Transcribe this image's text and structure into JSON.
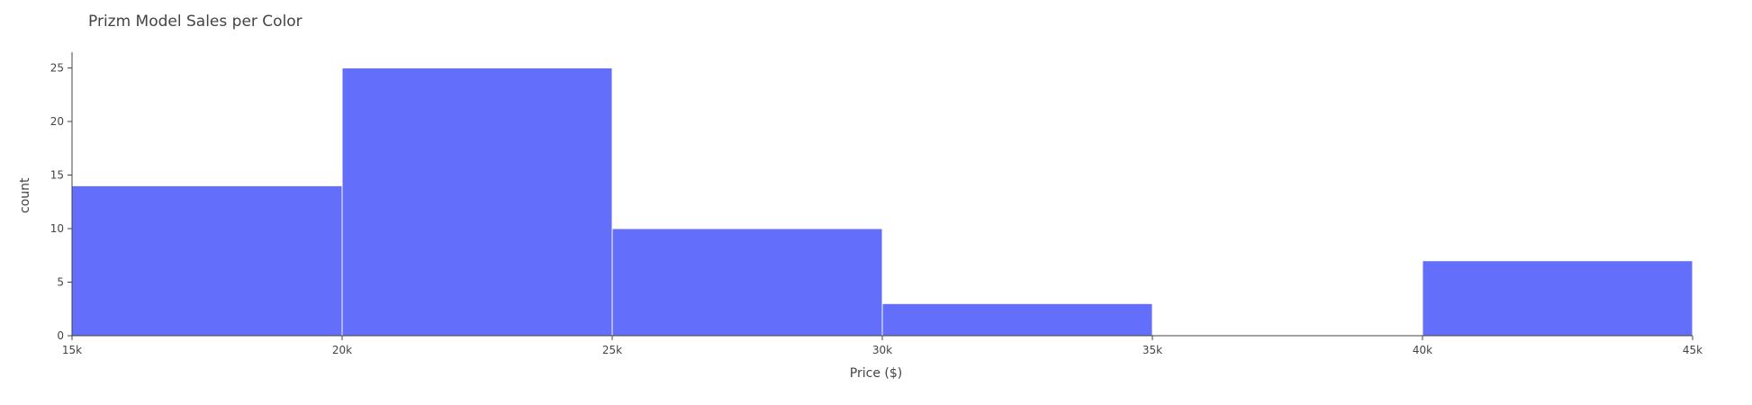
{
  "chart_data": {
    "type": "bar",
    "histogram": true,
    "title": "Prizm Model Sales per Color",
    "xlabel": "Price ($)",
    "ylabel": "count",
    "bins": [
      {
        "start": 15000,
        "end": 20000,
        "count": 14
      },
      {
        "start": 20000,
        "end": 25000,
        "count": 25
      },
      {
        "start": 25000,
        "end": 30000,
        "count": 10
      },
      {
        "start": 30000,
        "end": 35000,
        "count": 3
      },
      {
        "start": 35000,
        "end": 40000,
        "count": 0
      },
      {
        "start": 40000,
        "end": 45000,
        "count": 7
      }
    ],
    "xlim": [
      15000,
      45000
    ],
    "ylim": [
      0,
      26.3
    ],
    "x_ticks": [
      15000,
      20000,
      25000,
      30000,
      35000,
      40000,
      45000
    ],
    "x_tick_labels": [
      "15k",
      "20k",
      "25k",
      "30k",
      "35k",
      "40k",
      "45k"
    ],
    "y_ticks": [
      0,
      5,
      10,
      15,
      20,
      25
    ],
    "y_tick_labels": [
      "0",
      "5",
      "10",
      "15",
      "20",
      "25"
    ],
    "bar_color": "#636efa",
    "bar_edge_color": "#ffffff",
    "grid": false,
    "legend": "none"
  }
}
